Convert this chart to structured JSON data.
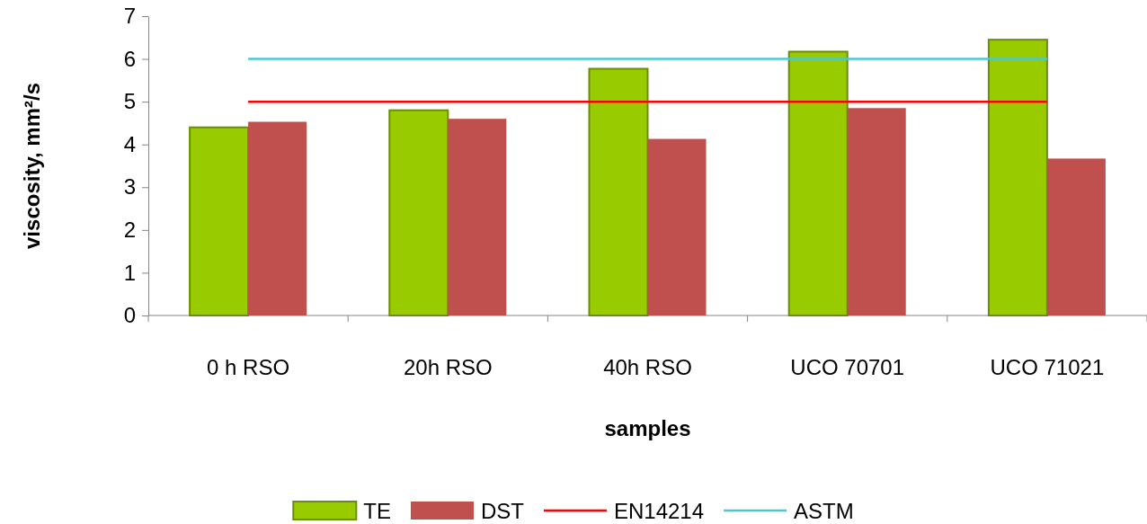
{
  "chart_data": {
    "type": "bar",
    "xlabel": "samples",
    "ylabel": "viscosity, mm²/s",
    "categories": [
      "0 h RSO",
      "20h RSO",
      "40h RSO",
      "UCO 70701",
      "UCO 71021"
    ],
    "ylim": [
      0,
      7
    ],
    "yticks": [
      0,
      1,
      2,
      3,
      4,
      5,
      6,
      7
    ],
    "grid": false,
    "legend": "bottom",
    "series": [
      {
        "name": "TE",
        "color": "#99cc00",
        "values": [
          4.4,
          4.8,
          5.77,
          6.17,
          6.45
        ]
      },
      {
        "name": "DST",
        "color": "#c0504d",
        "values": [
          4.53,
          4.6,
          4.13,
          4.85,
          3.67
        ]
      },
      {
        "name": "EN14214",
        "type": "line",
        "color": "#ff0000",
        "values": [
          5,
          5,
          5,
          5,
          5
        ]
      },
      {
        "name": "ASTM",
        "type": "line",
        "color": "#4bc8d0",
        "values": [
          6,
          6,
          6,
          6,
          6
        ]
      }
    ]
  }
}
